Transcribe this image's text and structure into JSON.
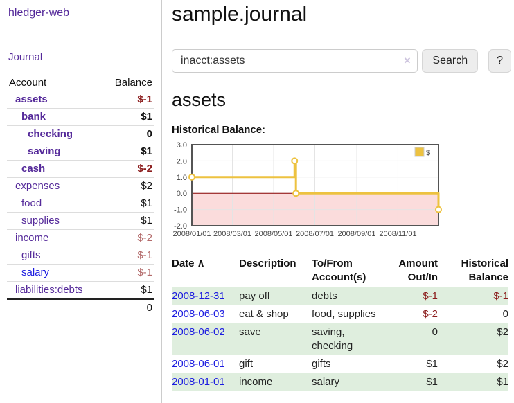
{
  "colors": {
    "link_purple": "#552a9a",
    "link_blue": "#1b1be0",
    "negative": "#8b1c1c",
    "negative_muted": "#b36a6a",
    "stripe_green": "#dfeede",
    "chart_line": "#edc240",
    "chart_zero_line": "#8b0000",
    "chart_negative_fill": "#fbdcdc",
    "chart_border": "#545454"
  },
  "sidebar": {
    "brand": "hledger-web",
    "journal_link": "Journal",
    "accounts": {
      "headers": {
        "account": "Account",
        "balance": "Balance"
      },
      "rows": [
        {
          "name": "assets",
          "depth": 1,
          "bold": true,
          "balance": "$-1",
          "negative": true,
          "muted": false,
          "unvisited": false
        },
        {
          "name": "bank",
          "depth": 2,
          "bold": true,
          "balance": "$1",
          "negative": false,
          "muted": false,
          "unvisited": false
        },
        {
          "name": "checking",
          "depth": 3,
          "bold": true,
          "balance": "0",
          "negative": false,
          "muted": false,
          "unvisited": false
        },
        {
          "name": "saving",
          "depth": 3,
          "bold": true,
          "balance": "$1",
          "negative": false,
          "muted": false,
          "unvisited": false
        },
        {
          "name": "cash",
          "depth": 2,
          "bold": true,
          "balance": "$-2",
          "negative": true,
          "muted": false,
          "unvisited": false
        },
        {
          "name": "expenses",
          "depth": 1,
          "bold": false,
          "balance": "$2",
          "negative": false,
          "muted": false,
          "unvisited": false
        },
        {
          "name": "food",
          "depth": 2,
          "bold": false,
          "balance": "$1",
          "negative": false,
          "muted": false,
          "unvisited": false
        },
        {
          "name": "supplies",
          "depth": 2,
          "bold": false,
          "balance": "$1",
          "negative": false,
          "muted": false,
          "unvisited": false
        },
        {
          "name": "income",
          "depth": 1,
          "bold": false,
          "balance": "$-2",
          "negative": true,
          "muted": true,
          "unvisited": false
        },
        {
          "name": "gifts",
          "depth": 2,
          "bold": false,
          "balance": "$-1",
          "negative": true,
          "muted": true,
          "unvisited": false
        },
        {
          "name": "salary",
          "depth": 2,
          "bold": false,
          "balance": "$-1",
          "negative": true,
          "muted": true,
          "unvisited": true
        },
        {
          "name": "liabilities:debts",
          "depth": 1,
          "bold": false,
          "balance": "$1",
          "negative": false,
          "muted": false,
          "unvisited": false
        }
      ],
      "total": "0"
    }
  },
  "main": {
    "title": "sample.journal",
    "search": {
      "value": "inacct:assets",
      "clear_icon": "✕",
      "search_button": "Search",
      "help_button": "?"
    },
    "account_heading": "assets",
    "chart_label": "Historical Balance:"
  },
  "chart_data": {
    "type": "line",
    "step": true,
    "title": "Historical Balance",
    "series": [
      {
        "name": "$",
        "points": [
          [
            "2008-01-01",
            1
          ],
          [
            "2008-06-01",
            2
          ],
          [
            "2008-06-03",
            0
          ],
          [
            "2008-12-31",
            -1
          ]
        ]
      }
    ],
    "xlim": [
      "2008-01-01",
      "2008-12-31"
    ],
    "ylim": [
      -2,
      3
    ],
    "yticks": [
      3,
      2,
      1,
      0,
      -1,
      -2
    ],
    "xticks": [
      {
        "date": "2008-01-01",
        "label": "2008/01/01"
      },
      {
        "date": "2008-03-01",
        "label": "2008/03/01"
      },
      {
        "date": "2008-05-01",
        "label": "2008/05/01"
      },
      {
        "date": "2008-07-01",
        "label": "2008/07/01"
      },
      {
        "date": "2008-09-01",
        "label": "2008/09/01"
      },
      {
        "date": "2008-11-01",
        "label": "2008/11/01"
      }
    ],
    "legend": {
      "label": "$",
      "position": "top-right"
    },
    "grid": true,
    "negative_region_shaded": true
  },
  "register": {
    "columns": [
      {
        "lines": [
          "Date"
        ],
        "sort_icon": "∧",
        "align": "left"
      },
      {
        "lines": [
          "Description"
        ],
        "align": "left"
      },
      {
        "lines": [
          "To/From",
          "Account(s)"
        ],
        "align": "left"
      },
      {
        "lines": [
          "Amount",
          "Out/In"
        ],
        "align": "right"
      },
      {
        "lines": [
          "Historical",
          "Balance"
        ],
        "align": "right"
      }
    ],
    "rows": [
      {
        "date": "2008-12-31",
        "description": "pay off",
        "accounts": "debts",
        "amount": "$-1",
        "amount_negative": true,
        "balance": "$-1",
        "balance_negative": true
      },
      {
        "date": "2008-06-03",
        "description": "eat & shop",
        "accounts": "food, supplies",
        "amount": "$-2",
        "amount_negative": true,
        "balance": "0",
        "balance_negative": false
      },
      {
        "date": "2008-06-02",
        "description": "save",
        "accounts": "saving, checking",
        "amount": "0",
        "amount_negative": false,
        "balance": "$2",
        "balance_negative": false
      },
      {
        "date": "2008-06-01",
        "description": "gift",
        "accounts": "gifts",
        "amount": "$1",
        "amount_negative": false,
        "balance": "$2",
        "balance_negative": false
      },
      {
        "date": "2008-01-01",
        "description": "income",
        "accounts": "salary",
        "amount": "$1",
        "amount_negative": false,
        "balance": "$1",
        "balance_negative": false
      }
    ]
  }
}
